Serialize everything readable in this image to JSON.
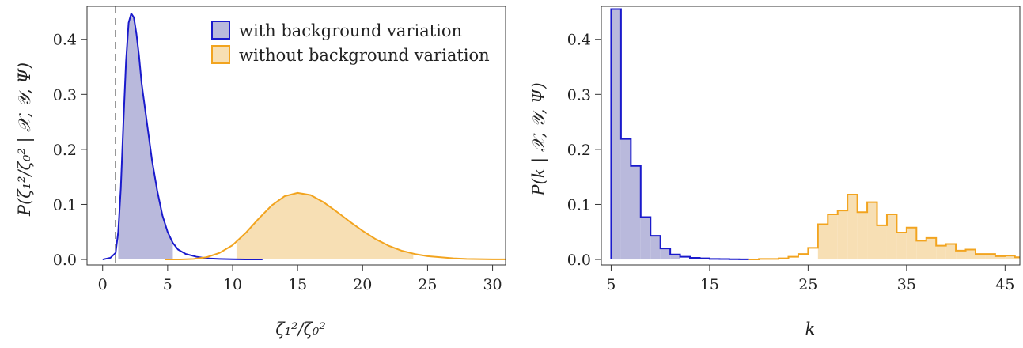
{
  "chart_data": [
    {
      "type": "area",
      "xlabel": "ζ₁²/ζ₀²",
      "ylabel": "P(ζ₁²/ζ₀² | 𝒳, 𝒴, Ψ)",
      "xlim": [
        -1.2,
        31
      ],
      "ylim": [
        -0.01,
        0.46
      ],
      "xticks": [
        0,
        5,
        10,
        15,
        20,
        25,
        30
      ],
      "yticks": [
        0.0,
        0.1,
        0.2,
        0.3,
        0.4
      ],
      "xtick_labels": [
        "0",
        "5",
        "10",
        "15",
        "20",
        "25",
        "30"
      ],
      "ytick_labels": [
        "0.0",
        "0.1",
        "0.2",
        "0.3",
        "0.4"
      ],
      "reference_line": {
        "x": 1,
        "style": "dashed",
        "color": "#555555"
      },
      "legend": {
        "placement": "top-right",
        "entries": [
          {
            "label": "with background variation",
            "color": "#1a1acc",
            "fill": "#b9b9dc"
          },
          {
            "label": "without background variation",
            "color": "#f2a41f",
            "fill": "#f7dfb4"
          }
        ]
      },
      "series": [
        {
          "name": "with background variation",
          "color": "#1a1acc",
          "fill": "#b9b9dc",
          "shade_range": [
            1.2,
            5.4
          ],
          "x": [
            0.0,
            0.6,
            1.0,
            1.2,
            1.4,
            1.6,
            1.8,
            2.0,
            2.2,
            2.4,
            2.6,
            2.8,
            3.0,
            3.4,
            3.8,
            4.2,
            4.6,
            5.0,
            5.4,
            5.8,
            6.4,
            7.2,
            8.0,
            9.0,
            10.0,
            11.0,
            12.3
          ],
          "y": [
            0.0,
            0.003,
            0.012,
            0.05,
            0.13,
            0.25,
            0.36,
            0.43,
            0.447,
            0.44,
            0.41,
            0.37,
            0.32,
            0.25,
            0.18,
            0.125,
            0.08,
            0.05,
            0.03,
            0.018,
            0.01,
            0.005,
            0.002,
            0.001,
            0.0005,
            0.0,
            0.0
          ]
        },
        {
          "name": "without background variation",
          "color": "#f2a41f",
          "fill": "#f7dfb4",
          "shade_range": [
            10.3,
            23.9
          ],
          "x": [
            4.8,
            6.0,
            7.0,
            8.0,
            9.0,
            10.0,
            11.0,
            12.0,
            13.0,
            14.0,
            15.0,
            16.0,
            17.0,
            18.0,
            19.0,
            20.0,
            21.0,
            22.0,
            23.0,
            24.0,
            25.0,
            26.0,
            27.0,
            28.0,
            29.0,
            30.0,
            31.0
          ],
          "y": [
            0.0,
            0.0,
            0.001,
            0.004,
            0.012,
            0.026,
            0.048,
            0.074,
            0.098,
            0.115,
            0.121,
            0.117,
            0.104,
            0.087,
            0.069,
            0.052,
            0.037,
            0.025,
            0.016,
            0.01,
            0.006,
            0.004,
            0.002,
            0.001,
            0.0006,
            0.0003,
            0.0002
          ]
        }
      ]
    },
    {
      "type": "bar",
      "xlabel": "k",
      "ylabel": "P(k | 𝒳, 𝒴, Ψ)",
      "xlim": [
        4.0,
        46.5
      ],
      "ylim": [
        -0.01,
        0.46
      ],
      "xticks": [
        5,
        15,
        25,
        35,
        45
      ],
      "yticks": [
        0.0,
        0.1,
        0.2,
        0.3,
        0.4
      ],
      "xtick_labels": [
        "5",
        "15",
        "25",
        "35",
        "45"
      ],
      "ytick_labels": [
        "0.0",
        "0.1",
        "0.2",
        "0.3",
        "0.4"
      ],
      "series": [
        {
          "name": "with background variation",
          "color": "#1a1acc",
          "fill": "#b9b9dc",
          "shade_range": [
            5,
            11
          ],
          "k": [
            5,
            6,
            7,
            8,
            9,
            10,
            11,
            12,
            13,
            14,
            15,
            16,
            17,
            18
          ],
          "values": [
            0.455,
            0.219,
            0.17,
            0.077,
            0.043,
            0.02,
            0.009,
            0.005,
            0.003,
            0.002,
            0.001,
            0.0008,
            0.0005,
            0.0003
          ]
        },
        {
          "name": "without background variation",
          "color": "#f2a41f",
          "fill": "#f7dfb4",
          "shade_range": [
            26,
            46
          ],
          "k": [
            19,
            20,
            21,
            22,
            23,
            24,
            25,
            26,
            27,
            28,
            29,
            30,
            31,
            32,
            33,
            34,
            35,
            36,
            37,
            38,
            39,
            40,
            41,
            42,
            43,
            44,
            45,
            46
          ],
          "values": [
            0.0,
            0.001,
            0.001,
            0.002,
            0.005,
            0.01,
            0.021,
            0.064,
            0.082,
            0.089,
            0.118,
            0.086,
            0.104,
            0.062,
            0.082,
            0.049,
            0.058,
            0.034,
            0.039,
            0.025,
            0.028,
            0.016,
            0.018,
            0.01,
            0.01,
            0.006,
            0.007,
            0.004
          ]
        }
      ]
    }
  ]
}
